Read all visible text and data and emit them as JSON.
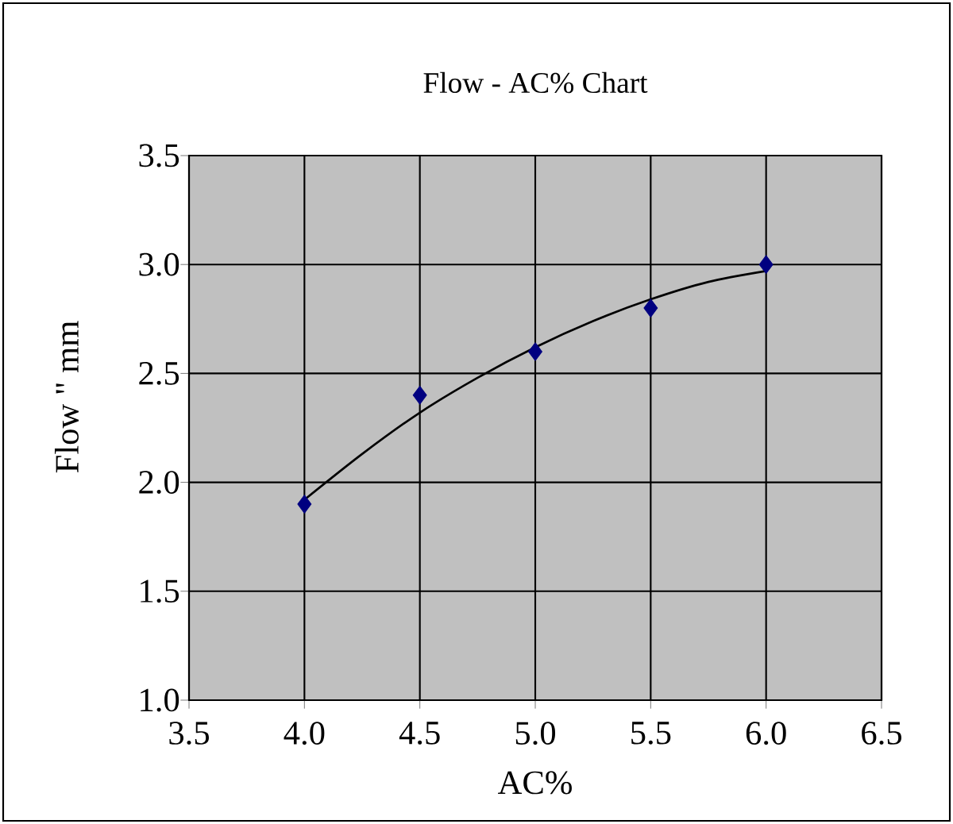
{
  "chart_data": {
    "type": "scatter",
    "title": "Flow - AC% Chart",
    "xlabel": "AC%",
    "ylabel": "Flow \" mm",
    "series": [
      {
        "color": "#000080",
        "marker": "diamond",
        "x": [
          4.0,
          4.5,
          5.0,
          5.5,
          6.0
        ],
        "values": [
          1.9,
          2.4,
          2.6,
          2.8,
          3.0
        ]
      },
      {
        "type": "line",
        "color": "#000000",
        "marker": "none",
        "line_style": "solid",
        "x": [
          4.0,
          4.25,
          4.5,
          4.75,
          5.0,
          5.25,
          5.5,
          5.75,
          6.0
        ],
        "values": [
          1.92,
          2.13,
          2.32,
          2.48,
          2.62,
          2.74,
          2.84,
          2.92,
          2.97
        ]
      }
    ],
    "xlim": [
      3.5,
      6.5
    ],
    "ylim": [
      1.0,
      3.5
    ],
    "xticks": [
      3.5,
      {
        "value": 4,
        "label": "4.0"
      },
      4.5,
      {
        "value": 5,
        "label": "5.0"
      },
      5.5,
      {
        "value": 6,
        "label": "6.0"
      },
      6.5
    ],
    "yticks": [
      {
        "value": 1,
        "label": "1.0"
      },
      1.5,
      {
        "value": 2,
        "label": "2.0"
      },
      2.5,
      {
        "value": 3,
        "label": "3.0"
      },
      3.5
    ],
    "grid": true
  }
}
